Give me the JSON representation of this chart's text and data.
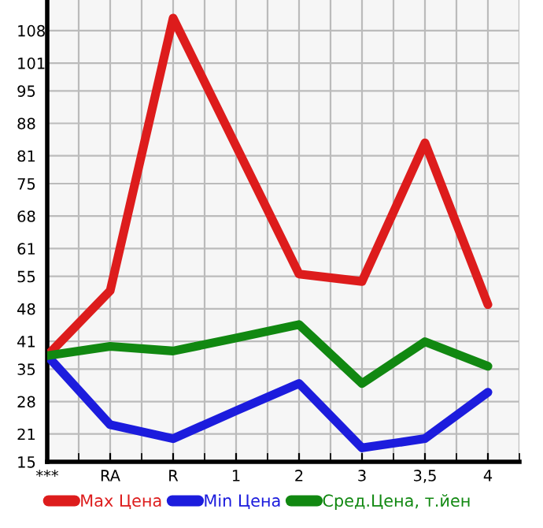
{
  "chart_data": {
    "type": "line",
    "categories": [
      "***",
      "RA",
      "R",
      "1",
      "2",
      "3",
      "3,5",
      "4"
    ],
    "series": [
      {
        "name": "Max Цена",
        "color": "#dd1c1c",
        "values": [
          37.9,
          51.9,
          110.7,
          83.1,
          55.5,
          53.9,
          83.8,
          48.9
        ]
      },
      {
        "name": "Min Цена",
        "color": "#1c1cdd",
        "values": [
          37.9,
          23.0,
          20.0,
          26.0,
          31.9,
          18.0,
          20.0,
          30.0
        ]
      },
      {
        "name": "Сред.Цена, т.йен",
        "color": "#118811",
        "values": [
          37.9,
          39.9,
          38.9,
          41.7,
          44.6,
          31.9,
          40.9,
          35.6
        ]
      }
    ],
    "ylim": [
      15,
      114.6
    ],
    "yticks": [
      15,
      21,
      28,
      35,
      41,
      48,
      55,
      61,
      68,
      75,
      81,
      88,
      95,
      101,
      108
    ],
    "grid": true,
    "legend": "bottom",
    "marker": "none",
    "line_style": "solid"
  }
}
